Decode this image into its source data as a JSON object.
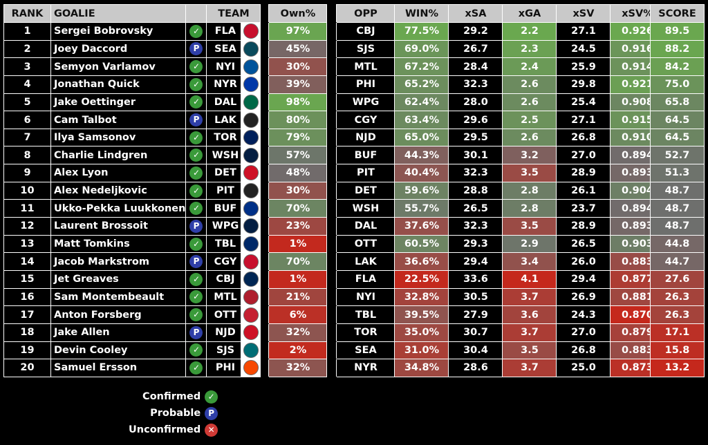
{
  "columns": {
    "rank": "RANK",
    "goalie": "GOALIE",
    "team": "TEAM",
    "own": "Own%",
    "opp": "OPP",
    "win": "WIN%",
    "xsa": "xSA",
    "xga": "xGA",
    "xsv": "xSV",
    "xsvp": "xSV%",
    "score": "SCORE"
  },
  "legend": [
    {
      "label": "Confirmed",
      "icon": "confirmed-icon"
    },
    {
      "label": "Probable",
      "icon": "probable-icon"
    },
    {
      "label": "Unconfirmed",
      "icon": "unconfirmed-icon"
    }
  ],
  "status_glyphs": {
    "confirmed": "✓",
    "probable": "P",
    "unconfirmed": "✕"
  },
  "colors": {
    "green": "#6aa84f",
    "red": "#c5281c",
    "neutral": "#6e6e6e",
    "confirmed": "#3a9a3a",
    "probable": "#2f3fa8",
    "unconfirmed": "#d03a35"
  },
  "rows": [
    {
      "rank": "1",
      "goalie": "Sergei Bobrovsky",
      "status": "confirmed",
      "team": "FLA",
      "own": "97%",
      "opp": "CBJ",
      "win": "77.5%",
      "xsa": "29.2",
      "xga": "2.2",
      "xsv": "27.1",
      "xsvp": "0.926",
      "score": "89.5"
    },
    {
      "rank": "2",
      "goalie": "Joey Daccord",
      "status": "probable",
      "team": "SEA",
      "own": "45%",
      "opp": "SJS",
      "win": "69.0%",
      "xsa": "26.7",
      "xga": "2.3",
      "xsv": "24.5",
      "xsvp": "0.916",
      "score": "88.2"
    },
    {
      "rank": "3",
      "goalie": "Semyon Varlamov",
      "status": "confirmed",
      "team": "NYI",
      "own": "30%",
      "opp": "MTL",
      "win": "67.2%",
      "xsa": "28.4",
      "xga": "2.4",
      "xsv": "25.9",
      "xsvp": "0.914",
      "score": "84.2"
    },
    {
      "rank": "4",
      "goalie": "Jonathan Quick",
      "status": "confirmed",
      "team": "NYR",
      "own": "39%",
      "opp": "PHI",
      "win": "65.2%",
      "xsa": "32.3",
      "xga": "2.6",
      "xsv": "29.8",
      "xsvp": "0.921",
      "score": "75.0"
    },
    {
      "rank": "5",
      "goalie": "Jake Oettinger",
      "status": "confirmed",
      "team": "DAL",
      "own": "98%",
      "opp": "WPG",
      "win": "62.4%",
      "xsa": "28.0",
      "xga": "2.6",
      "xsv": "25.4",
      "xsvp": "0.908",
      "score": "65.8"
    },
    {
      "rank": "6",
      "goalie": "Cam Talbot",
      "status": "probable",
      "team": "LAK",
      "own": "80%",
      "opp": "CGY",
      "win": "63.4%",
      "xsa": "29.6",
      "xga": "2.5",
      "xsv": "27.1",
      "xsvp": "0.915",
      "score": "64.5"
    },
    {
      "rank": "7",
      "goalie": "Ilya Samsonov",
      "status": "confirmed",
      "team": "TOR",
      "own": "79%",
      "opp": "NJD",
      "win": "65.0%",
      "xsa": "29.5",
      "xga": "2.6",
      "xsv": "26.8",
      "xsvp": "0.910",
      "score": "64.5"
    },
    {
      "rank": "8",
      "goalie": "Charlie Lindgren",
      "status": "confirmed",
      "team": "WSH",
      "own": "57%",
      "opp": "BUF",
      "win": "44.3%",
      "xsa": "30.1",
      "xga": "3.2",
      "xsv": "27.0",
      "xsvp": "0.894",
      "score": "52.7"
    },
    {
      "rank": "9",
      "goalie": "Alex Lyon",
      "status": "confirmed",
      "team": "DET",
      "own": "48%",
      "opp": "PIT",
      "win": "40.4%",
      "xsa": "32.3",
      "xga": "3.5",
      "xsv": "28.9",
      "xsvp": "0.893",
      "score": "51.3"
    },
    {
      "rank": "10",
      "goalie": "Alex Nedeljkovic",
      "status": "confirmed",
      "team": "PIT",
      "own": "30%",
      "opp": "DET",
      "win": "59.6%",
      "xsa": "28.8",
      "xga": "2.8",
      "xsv": "26.1",
      "xsvp": "0.904",
      "score": "48.7"
    },
    {
      "rank": "11",
      "goalie": "Ukko-Pekka Luukkonen",
      "status": "confirmed",
      "team": "BUF",
      "own": "70%",
      "opp": "WSH",
      "win": "55.7%",
      "xsa": "26.5",
      "xga": "2.8",
      "xsv": "23.7",
      "xsvp": "0.894",
      "score": "48.7"
    },
    {
      "rank": "12",
      "goalie": "Laurent Brossoit",
      "status": "probable",
      "team": "WPG",
      "own": "23%",
      "opp": "DAL",
      "win": "37.6%",
      "xsa": "32.3",
      "xga": "3.5",
      "xsv": "28.9",
      "xsvp": "0.893",
      "score": "48.7"
    },
    {
      "rank": "13",
      "goalie": "Matt Tomkins",
      "status": "confirmed",
      "team": "TBL",
      "own": "1%",
      "opp": "OTT",
      "win": "60.5%",
      "xsa": "29.3",
      "xga": "2.9",
      "xsv": "26.5",
      "xsvp": "0.903",
      "score": "44.8"
    },
    {
      "rank": "14",
      "goalie": "Jacob Markstrom",
      "status": "probable",
      "team": "CGY",
      "own": "70%",
      "opp": "LAK",
      "win": "36.6%",
      "xsa": "29.4",
      "xga": "3.4",
      "xsv": "26.0",
      "xsvp": "0.883",
      "score": "44.7"
    },
    {
      "rank": "15",
      "goalie": "Jet Greaves",
      "status": "confirmed",
      "team": "CBJ",
      "own": "1%",
      "opp": "FLA",
      "win": "22.5%",
      "xsa": "33.6",
      "xga": "4.1",
      "xsv": "29.4",
      "xsvp": "0.877",
      "score": "27.6"
    },
    {
      "rank": "16",
      "goalie": "Sam Montembeault",
      "status": "confirmed",
      "team": "MTL",
      "own": "21%",
      "opp": "NYI",
      "win": "32.8%",
      "xsa": "30.5",
      "xga": "3.7",
      "xsv": "26.9",
      "xsvp": "0.881",
      "score": "26.3"
    },
    {
      "rank": "17",
      "goalie": "Anton Forsberg",
      "status": "confirmed",
      "team": "OTT",
      "own": "6%",
      "opp": "TBL",
      "win": "39.5%",
      "xsa": "27.9",
      "xga": "3.6",
      "xsv": "24.3",
      "xsvp": "0.870",
      "score": "26.3"
    },
    {
      "rank": "18",
      "goalie": "Jake Allen",
      "status": "probable",
      "team": "NJD",
      "own": "32%",
      "opp": "TOR",
      "win": "35.0%",
      "xsa": "30.7",
      "xga": "3.7",
      "xsv": "27.0",
      "xsvp": "0.879",
      "score": "17.1"
    },
    {
      "rank": "19",
      "goalie": "Devin Cooley",
      "status": "confirmed",
      "team": "SJS",
      "own": "2%",
      "opp": "SEA",
      "win": "31.0%",
      "xsa": "30.4",
      "xga": "3.5",
      "xsv": "26.8",
      "xsvp": "0.883",
      "score": "15.8"
    },
    {
      "rank": "20",
      "goalie": "Samuel Ersson",
      "status": "confirmed",
      "team": "PHI",
      "own": "32%",
      "opp": "NYR",
      "win": "34.8%",
      "xsa": "28.6",
      "xga": "3.7",
      "xsv": "25.0",
      "xsvp": "0.873",
      "score": "13.2"
    }
  ],
  "team_colors": {
    "FLA": "#c8102e",
    "SEA": "#0a4a5c",
    "NYI": "#00539b",
    "NYR": "#0038a8",
    "DAL": "#006847",
    "LAK": "#222222",
    "TOR": "#00205b",
    "WSH": "#041e42",
    "DET": "#ce1126",
    "PIT": "#222222",
    "BUF": "#003087",
    "WPG": "#041e42",
    "TBL": "#002868",
    "CGY": "#c8102e",
    "CBJ": "#002654",
    "MTL": "#af1e2d",
    "OTT": "#c52032",
    "NJD": "#ce1126",
    "SJS": "#006d75",
    "PHI": "#f74902"
  }
}
